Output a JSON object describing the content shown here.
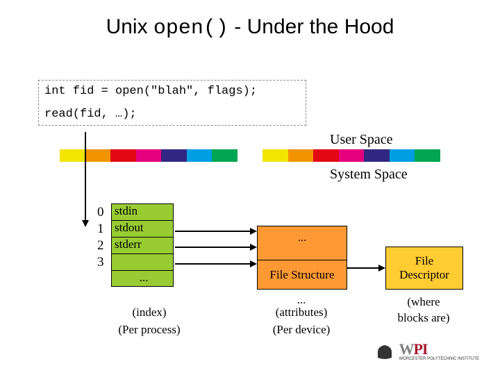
{
  "title": {
    "pre": "Unix ",
    "code": "open()",
    "post": " - Under the Hood"
  },
  "code": {
    "line1": "int fid = open(\"blah\", flags);",
    "line2": "read(fid, …);"
  },
  "labels": {
    "user_space": "User Space",
    "system_space": "System Space"
  },
  "stripe_colors": [
    "#ffffff",
    "#f2e500",
    "#f29400",
    "#e30613",
    "#e6007e",
    "#312783",
    "#009fe3",
    "#00a651",
    "#ffffff",
    "#f2e500",
    "#f29400",
    "#e30613",
    "#e6007e",
    "#312783",
    "#009fe3",
    "#00a651",
    "#ffffff"
  ],
  "fd_table": {
    "indices": [
      "0",
      "1",
      "2",
      "3"
    ],
    "rows": [
      "stdin",
      "stdout",
      "stderr",
      "",
      ""
    ],
    "ellipsis": "...",
    "caption_index": "(index)",
    "caption_per": "(Per process)",
    "bg": "#99cc33"
  },
  "file_structure": {
    "ellipsis": "...",
    "label": "File Structure",
    "bottom_dots": "...",
    "caption_attr": "(attributes)",
    "caption_per": "(Per device)",
    "bg": "#ff9933"
  },
  "file_descriptor": {
    "line1": "File",
    "line2": "Descriptor",
    "caption1": "(where",
    "caption2": "blocks are)",
    "bg": "#ffcc33"
  },
  "logo": {
    "w": "W",
    "p": "P",
    "i": "I",
    "tagline": "WORCESTER POLYTECHNIC INSTITUTE",
    "w_color": "#808080",
    "p_color": "#a6192e",
    "i_color": "#a6192e"
  },
  "colors": {
    "black": "#000000"
  }
}
